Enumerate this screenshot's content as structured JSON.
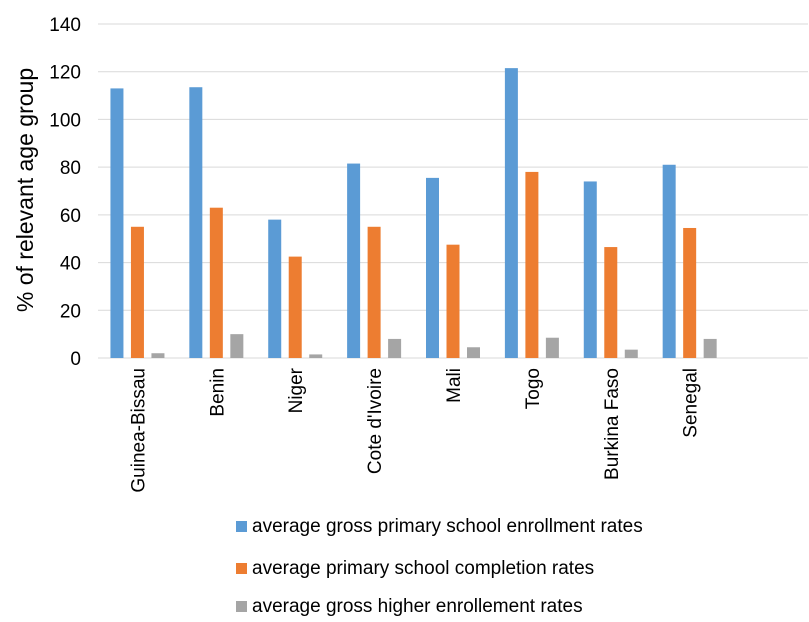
{
  "chart_data": {
    "type": "bar",
    "title": "",
    "xlabel": "",
    "ylabel": "% of relevant age group",
    "ylim": [
      0,
      140
    ],
    "yticks": [
      0,
      20,
      40,
      60,
      80,
      100,
      120,
      140
    ],
    "grid": true,
    "legend_position": "bottom",
    "categories": [
      "Guinea-Bissau",
      "Benin",
      "Niger",
      "Cote d'Ivoire",
      "Mali",
      "Togo",
      "Burkina Faso",
      "Senegal"
    ],
    "series": [
      {
        "name": "average gross primary school enrollment rates",
        "color": "#5b9bd5",
        "values": [
          113,
          113.5,
          58,
          81.5,
          75.5,
          121.5,
          74,
          81
        ]
      },
      {
        "name": "average primary school completion rates",
        "color": "#ed7d31",
        "values": [
          55,
          63,
          42.5,
          55,
          47.5,
          78,
          46.5,
          54.5
        ]
      },
      {
        "name": "average gross higher enrollement rates",
        "color": "#a5a5a5",
        "values": [
          2,
          10,
          1.5,
          8,
          4.5,
          8.5,
          3.5,
          8
        ]
      }
    ]
  }
}
